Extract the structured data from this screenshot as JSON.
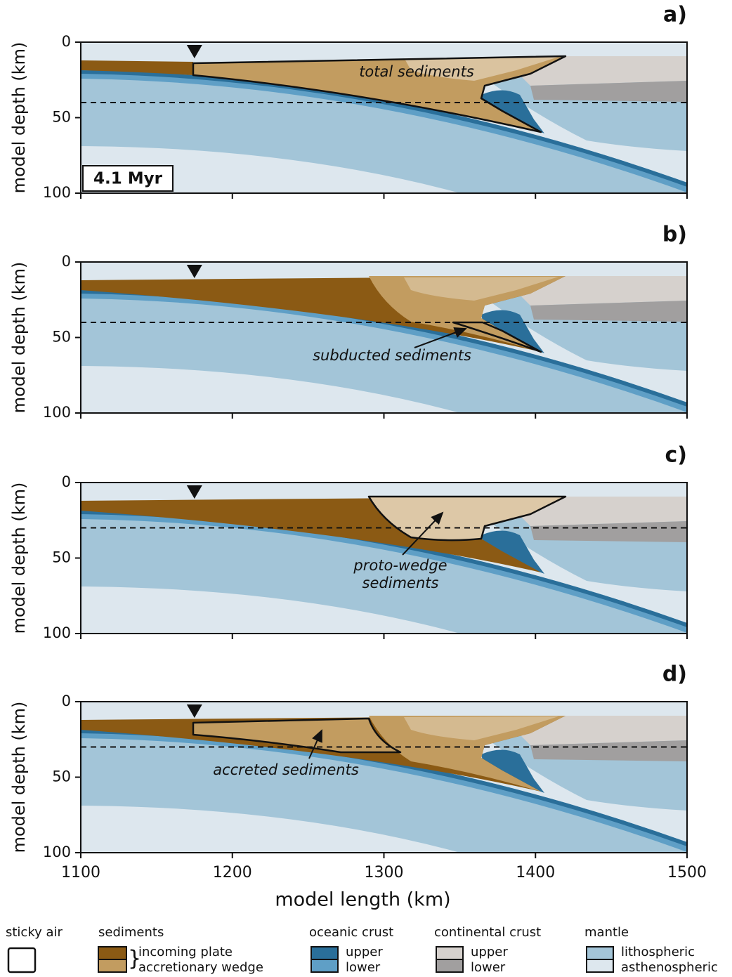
{
  "chart_data": [
    {
      "type": "section",
      "panel_label": "a)",
      "y_label": "model depth (km)",
      "ylim": [
        0,
        100
      ],
      "yticks": [
        0,
        50,
        100
      ],
      "xlim": [
        1100,
        1500
      ],
      "xticks": [
        1100,
        1200,
        1300,
        1400,
        1500
      ],
      "dashed_depth": 40,
      "marker_x": 1175,
      "time_label": "4.1 Myr",
      "annotation": [
        "total sediments"
      ]
    },
    {
      "type": "section",
      "panel_label": "b)",
      "y_label": "model depth (km)",
      "ylim": [
        0,
        100
      ],
      "yticks": [
        0,
        50,
        100
      ],
      "xlim": [
        1100,
        1500
      ],
      "xticks": [
        1100,
        1200,
        1300,
        1400,
        1500
      ],
      "dashed_depth": 40,
      "marker_x": 1175,
      "annotation": [
        "subducted sediments"
      ]
    },
    {
      "type": "section",
      "panel_label": "c)",
      "y_label": "model depth (km)",
      "ylim": [
        0,
        100
      ],
      "yticks": [
        0,
        50,
        100
      ],
      "xlim": [
        1100,
        1500
      ],
      "xticks": [
        1100,
        1200,
        1300,
        1400,
        1500
      ],
      "dashed_depth": 30,
      "marker_x": 1175,
      "annotation": [
        "proto-wedge",
        "sediments"
      ]
    },
    {
      "type": "section",
      "panel_label": "d)",
      "y_label": "model depth (km)",
      "ylim": [
        0,
        100
      ],
      "yticks": [
        0,
        50,
        100
      ],
      "xlim": [
        1100,
        1500
      ],
      "xticks": [
        1100,
        1200,
        1300,
        1400,
        1500
      ],
      "dashed_depth": 30,
      "marker_x": 1175,
      "annotation": [
        "accreted sediments"
      ],
      "x_label": "model length (km)"
    }
  ],
  "legend": [
    {
      "title": "sticky air",
      "color": "#ffffff"
    },
    {
      "title": "sediments",
      "items": [
        {
          "label": "incoming plate",
          "color": "#8b5a14"
        },
        {
          "label": "accretionary wedge",
          "color": "#c29c60"
        }
      ]
    },
    {
      "title": "oceanic crust",
      "items": [
        {
          "label": "upper",
          "color": "#2a6f9a"
        },
        {
          "label": "lower",
          "color": "#5f9fc6"
        }
      ]
    },
    {
      "title": "continental crust",
      "items": [
        {
          "label": "upper",
          "color": "#d6d1cd"
        },
        {
          "label": "lower",
          "color": "#a19f9f"
        }
      ]
    },
    {
      "title": "mantle",
      "items": [
        {
          "label": "lithospheric",
          "color": "#a3c5d8"
        },
        {
          "label": "asthenospheric",
          "color": "#dde7ee"
        }
      ]
    }
  ]
}
